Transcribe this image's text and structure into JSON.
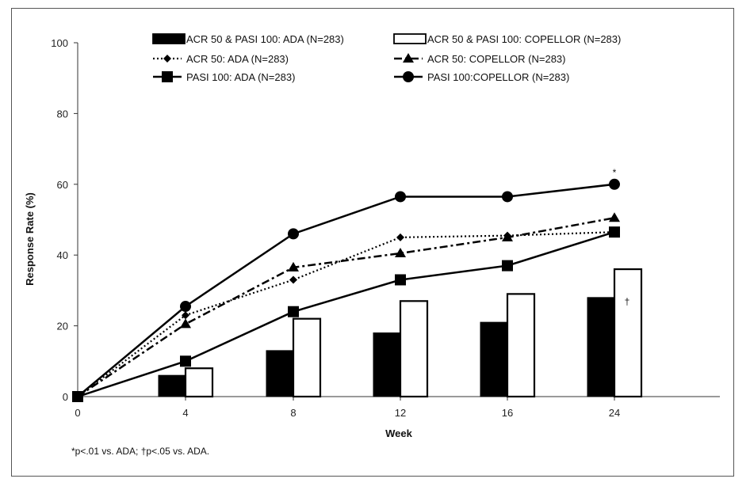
{
  "chart_data": {
    "type": "bar+line",
    "xlabel": "Week",
    "ylabel": "Response Rate (%)",
    "categories": [
      "0",
      "4",
      "8",
      "12",
      "16",
      "24"
    ],
    "ylim": [
      0,
      100
    ],
    "yticks": [
      "0",
      "20",
      "40",
      "60",
      "80",
      "100"
    ],
    "grid": false,
    "legend_position": "top",
    "bar_series": [
      {
        "name": "ACR 50 & PASI 100: ADA (N=283)",
        "fill": "#000000",
        "values": [
          null,
          6,
          13,
          18,
          21,
          28
        ]
      },
      {
        "name": "ACR 50 & PASI 100: COPELLOR (N=283)",
        "fill": "#ffffff",
        "values": [
          null,
          8,
          22,
          27,
          29,
          36
        ]
      }
    ],
    "line_series": [
      {
        "name": "ACR 50: ADA (N=283)",
        "style": "dotted",
        "marker": "diamond",
        "values": [
          0,
          23,
          33,
          45,
          45.5,
          46.5
        ]
      },
      {
        "name": "ACR 50: COPELLOR (N=283)",
        "style": "dashdot",
        "marker": "triangle",
        "values": [
          0,
          20.5,
          36.5,
          40.5,
          45,
          50.5
        ]
      },
      {
        "name": "PASI 100: ADA (N=283)",
        "style": "solid",
        "marker": "square",
        "values": [
          0,
          10,
          24,
          33,
          37,
          46.5
        ]
      },
      {
        "name": "PASI 100:COPELLOR (N=283)",
        "style": "solid",
        "marker": "circle",
        "values": [
          0,
          25.5,
          46,
          56.5,
          56.5,
          60
        ]
      }
    ],
    "annotations": [
      {
        "text": "*",
        "category": "24",
        "near": "PASI 100:COPELLOR (N=283)"
      },
      {
        "text": "†",
        "category": "24",
        "near": "ACR 50 & PASI 100: COPELLOR (N=283)"
      }
    ],
    "footnote": "*p<.01 vs. ADA; †p<.05 vs. ADA."
  }
}
